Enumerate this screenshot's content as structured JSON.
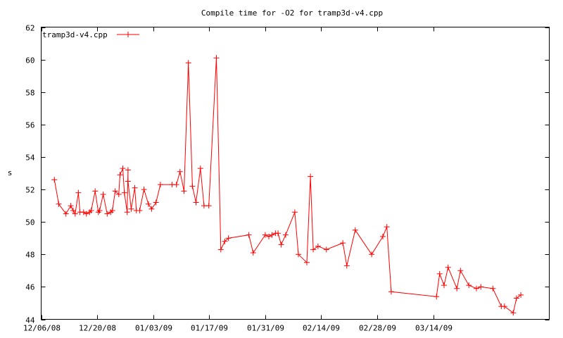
{
  "chart_data": {
    "type": "line",
    "title": "Compile time for -O2 for tramp3d-v4.cpp",
    "xlabel": "",
    "ylabel": "s",
    "x_unit": "days since 12/06/08",
    "xlim": [
      0,
      127
    ],
    "ylim": [
      44,
      62
    ],
    "y_ticks": [
      44,
      46,
      48,
      50,
      52,
      54,
      56,
      58,
      60,
      62
    ],
    "x_ticks": [
      {
        "day": 0,
        "label": "12/06/08"
      },
      {
        "day": 14,
        "label": "12/20/08"
      },
      {
        "day": 28,
        "label": "01/03/09"
      },
      {
        "day": 42,
        "label": "01/17/09"
      },
      {
        "day": 56,
        "label": "01/31/09"
      },
      {
        "day": 70,
        "label": "02/14/09"
      },
      {
        "day": 84,
        "label": "02/28/09"
      },
      {
        "day": 98,
        "label": "03/14/09"
      }
    ],
    "grid": false,
    "legend_position": "top-left",
    "series": [
      {
        "name": "tramp3d-v4.cpp",
        "color": "#ff0000",
        "x": [
          3.3,
          4.4,
          6.2,
          7.4,
          8.0,
          8.5,
          9.3,
          9.7,
          10.6,
          11.3,
          12.1,
          12.5,
          13.5,
          14.3,
          14.6,
          15.5,
          16.5,
          17.4,
          17.8,
          18.5,
          19.4,
          19.7,
          20.4,
          20.8,
          21.5,
          21.7,
          21.7,
          22.5,
          23.4,
          23.8,
          24.6,
          25.7,
          26.8,
          27.6,
          28.7,
          29.8,
          32.7,
          33.8,
          34.7,
          35.7,
          36.8,
          37.8,
          38.7,
          39.8,
          40.7,
          41.9,
          43.8,
          44.9,
          45.9,
          46.8,
          51.9,
          53.0,
          56.0,
          56.9,
          57.7,
          58.6,
          59.2,
          60.0,
          61.1,
          63.4,
          64.3,
          66.4,
          67.3,
          68.0,
          69.2,
          71.3,
          75.4,
          76.4,
          78.5,
          82.6,
          85.4,
          86.4,
          87.5,
          98.8,
          99.6,
          100.7,
          101.7,
          103.9,
          104.8,
          106.9,
          108.8,
          109.9,
          112.9,
          115.0,
          115.8,
          118.0,
          118.8,
          119.9
        ],
        "y": [
          52.6,
          51.1,
          50.5,
          51.0,
          50.7,
          50.5,
          51.8,
          50.6,
          50.6,
          50.5,
          50.6,
          50.7,
          51.9,
          50.6,
          50.7,
          51.7,
          50.5,
          50.6,
          50.7,
          51.9,
          51.7,
          52.9,
          53.3,
          51.8,
          50.6,
          53.2,
          52.5,
          50.8,
          52.1,
          50.7,
          50.7,
          52.0,
          51.1,
          50.8,
          51.2,
          52.3,
          52.3,
          52.3,
          53.1,
          51.9,
          59.8,
          52.2,
          51.2,
          53.3,
          51.0,
          51.0,
          60.1,
          48.3,
          48.8,
          49.0,
          49.2,
          48.1,
          49.2,
          49.1,
          49.2,
          49.3,
          49.3,
          48.6,
          49.2,
          50.6,
          48.0,
          47.5,
          52.8,
          48.3,
          48.5,
          48.3,
          48.7,
          47.3,
          49.5,
          48.0,
          49.1,
          49.7,
          45.7,
          45.4,
          46.8,
          46.1,
          47.2,
          45.9,
          47.0,
          46.1,
          45.9,
          46.0,
          45.9,
          44.8,
          44.8,
          44.4,
          45.3,
          45.5
        ]
      }
    ]
  }
}
